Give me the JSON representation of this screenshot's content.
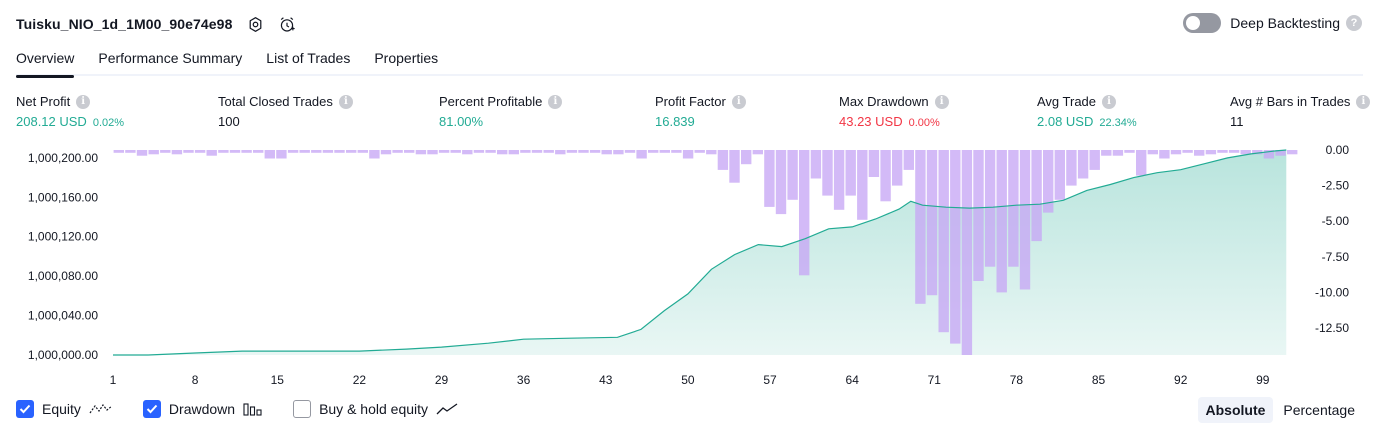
{
  "header": {
    "title": "Tuisku_NIO_1d_1M00_90e74e98"
  },
  "deep_backtesting": {
    "label": "Deep Backtesting",
    "help": "?"
  },
  "tabs": [
    {
      "label": "Overview"
    },
    {
      "label": "Performance Summary"
    },
    {
      "label": "List of Trades"
    },
    {
      "label": "Properties"
    }
  ],
  "stats": {
    "info": "i",
    "net_profit": {
      "label": "Net Profit",
      "value": "208.12 USD",
      "pct": "0.02%"
    },
    "total_closed_trades": {
      "label": "Total Closed Trades",
      "value": "100"
    },
    "percent_profitable": {
      "label": "Percent Profitable",
      "value": "81.00%"
    },
    "profit_factor": {
      "label": "Profit Factor",
      "value": "16.839"
    },
    "max_drawdown": {
      "label": "Max Drawdown",
      "value": "43.23 USD",
      "pct": "0.00%"
    },
    "avg_trade": {
      "label": "Avg Trade",
      "value": "2.08 USD",
      "pct": "22.34%"
    },
    "avg_bars": {
      "label": "Avg # Bars in Trades",
      "value": "11"
    }
  },
  "colors": {
    "equity_line": "#22ab94",
    "equity_fill": "#22ab94",
    "drawdown": "#c7a6f5",
    "positive": "#22ab94",
    "negative": "#f23645",
    "accent": "#2962ff"
  },
  "chart_data": {
    "type": "area",
    "x_ticks": [
      "1",
      "8",
      "15",
      "22",
      "29",
      "36",
      "43",
      "50",
      "57",
      "64",
      "71",
      "78",
      "85",
      "92",
      "99"
    ],
    "xlim": [
      1,
      102
    ],
    "left_axis": {
      "ticks": [
        "1,000,000.00",
        "1,000,040.00",
        "1,000,080.00",
        "1,000,120.00",
        "1,000,160.00",
        "1,000,200.00"
      ],
      "ylim": [
        1000000,
        1000208
      ]
    },
    "right_axis": {
      "ticks": [
        "0.00",
        "-2.50",
        "-5.00",
        "-7.50",
        "-10.00",
        "-12.50"
      ],
      "ylim": [
        -14.4,
        0
      ]
    },
    "series": [
      {
        "name": "Equity",
        "x": [
          1,
          4,
          8,
          12,
          15,
          18,
          22,
          26,
          29,
          33,
          36,
          40,
          44,
          46,
          48,
          50,
          52,
          54,
          56,
          58,
          60,
          62,
          64,
          66,
          68,
          69,
          70,
          72,
          74,
          76,
          78,
          80,
          82,
          84,
          86,
          88,
          90,
          92,
          94,
          96,
          98,
          100,
          101
        ],
        "values": [
          1000000,
          1000000,
          1000002,
          1000004,
          1000004,
          1000004,
          1000004,
          1000006,
          1000008,
          1000012,
          1000016,
          1000017,
          1000018,
          1000026,
          1000045,
          1000062,
          1000087,
          1000102,
          1000112,
          1000110,
          1000118,
          1000128,
          1000130,
          1000138,
          1000148,
          1000156,
          1000152,
          1000150,
          1000149,
          1000150,
          1000152,
          1000153,
          1000157,
          1000167,
          1000173,
          1000180,
          1000185,
          1000188,
          1000194,
          1000200,
          1000204,
          1000207,
          1000208
        ]
      },
      {
        "name": "Drawdown",
        "values": [
          -0.2,
          -0.2,
          -0.4,
          -0.3,
          -0.2,
          -0.3,
          -0.2,
          -0.2,
          -0.4,
          -0.2,
          -0.2,
          -0.2,
          -0.2,
          -0.6,
          -0.6,
          -0.2,
          -0.2,
          -0.2,
          -0.2,
          -0.2,
          -0.2,
          -0.2,
          -0.6,
          -0.3,
          -0.2,
          -0.2,
          -0.3,
          -0.3,
          -0.2,
          -0.2,
          -0.3,
          -0.2,
          -0.2,
          -0.3,
          -0.3,
          -0.2,
          -0.2,
          -0.2,
          -0.3,
          -0.2,
          -0.2,
          -0.2,
          -0.3,
          -0.3,
          -0.2,
          -0.6,
          -0.2,
          -0.2,
          -0.2,
          -0.6,
          -0.2,
          -0.3,
          -1.4,
          -2.3,
          -1.0,
          -0.3,
          -4.0,
          -4.5,
          -3.5,
          -8.8,
          -2.0,
          -3.2,
          -4.2,
          -3.2,
          -4.9,
          -1.9,
          -3.6,
          -2.5,
          -1.4,
          -10.8,
          -10.2,
          -12.8,
          -13.6,
          -14.4,
          -9.2,
          -8.2,
          -10.0,
          -8.2,
          -9.8,
          -6.4,
          -4.4,
          -3.5,
          -2.5,
          -2.0,
          -1.4,
          -0.4,
          -0.4,
          -0.2,
          -1.8,
          -0.3,
          -0.6,
          -0.3,
          -0.2,
          -0.4,
          -0.3,
          -0.2,
          -0.2,
          -0.3,
          -0.3,
          -0.6,
          -0.4,
          -0.3
        ]
      }
    ]
  },
  "legend": {
    "equity": "Equity",
    "drawdown": "Drawdown",
    "buy_hold": "Buy & hold equity",
    "scale": {
      "absolute": "Absolute",
      "percentage": "Percentage"
    }
  }
}
